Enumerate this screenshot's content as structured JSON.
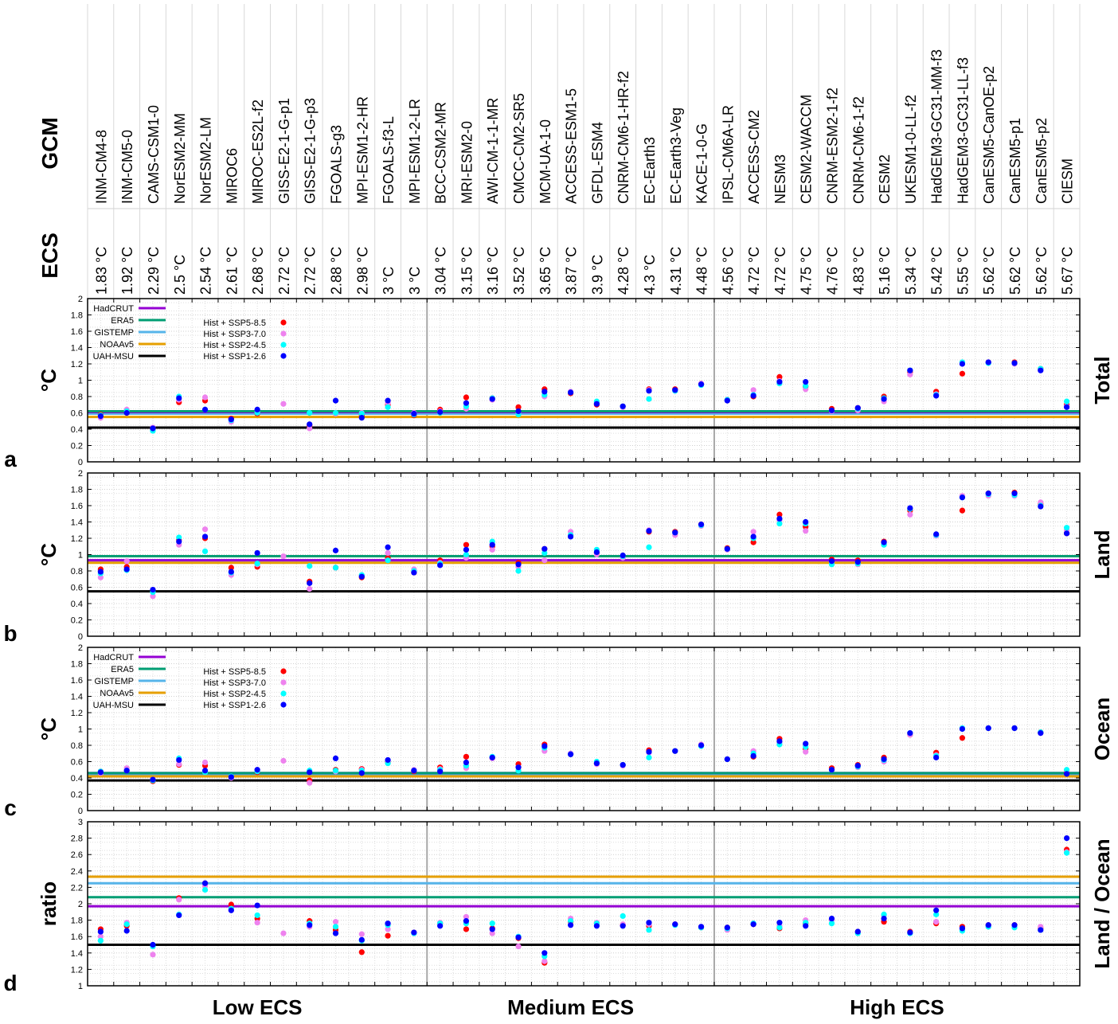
{
  "header": {
    "gcm_label": "GCM",
    "ecs_label": "ECS"
  },
  "models": [
    "INM-CM4-8",
    "INM-CM5-0",
    "CAMS-CSM1-0",
    "NorESM2-MM",
    "NorESM2-LM",
    "MIROC6",
    "MIROC-ES2L-f2",
    "GISS-E2-1-G-p1",
    "GISS-E2-1-G-p3",
    "FGOALS-g3",
    "MPI-ESM1-2-HR",
    "FGOALS-f3-L",
    "MPI-ESM1-2-LR",
    "BCC-CSM2-MR",
    "MRI-ESM2-0",
    "AWI-CM-1-1-MR",
    "CMCC-CM2-SR5",
    "MCM-UA-1-0",
    "ACCESS-ESM1-5",
    "GFDL-ESM4",
    "CNRM-CM6-1-HR-f2",
    "EC-Earth3",
    "EC-Earth3-Veg",
    "KACE-1-0-G",
    "IPSL-CM6A-LR",
    "ACCESS-CM2",
    "NESM3",
    "CESM2-WACCM",
    "CNRM-ESM2-1-f2",
    "CNRM-CM6-1-f2",
    "CESM2",
    "UKESM1-0-LL-f2",
    "HadGEM3-GC31-MM-f3",
    "HadGEM3-GC31-LL-f3",
    "CanESM5-CanOE-p2",
    "CanESM5-p1",
    "CanESM5-p2",
    "CIESM"
  ],
  "ecs": [
    "1.83 °C",
    "1.92 °C",
    "2.29 °C",
    "2.5 °C",
    "2.54 °C",
    "2.61 °C",
    "2.68 °C",
    "2.72 °C",
    "2.72 °C",
    "2.88 °C",
    "2.98 °C",
    "3 °C",
    "3 °C",
    "3.04 °C",
    "3.15 °C",
    "3.16 °C",
    "3.52 °C",
    "3.65 °C",
    "3.87 °C",
    "3.9 °C",
    "4.28 °C",
    "4.3 °C",
    "4.31 °C",
    "4.48 °C",
    "4.56 °C",
    "4.72 °C",
    "4.72 °C",
    "4.75 °C",
    "4.76 °C",
    "4.83 °C",
    "5.16 °C",
    "5.34 °C",
    "5.42 °C",
    "5.55 °C",
    "5.62 °C",
    "5.62 °C",
    "5.62 °C",
    "5.67 °C"
  ],
  "groups": [
    {
      "label": "Low ECS",
      "first": 0,
      "last": 12
    },
    {
      "label": "Medium ECS",
      "first": 13,
      "last": 23
    },
    {
      "label": "High ECS",
      "first": 24,
      "last": 37
    }
  ],
  "legend": {
    "observations": [
      {
        "label": "HadCRUT",
        "color": "#9400d3"
      },
      {
        "label": "ERA5",
        "color": "#009e73"
      },
      {
        "label": "GISTEMP",
        "color": "#56b4e9"
      },
      {
        "label": "NOAAv5",
        "color": "#e69f00"
      },
      {
        "label": "UAH-MSU",
        "color": "#000000"
      }
    ],
    "scenarios": [
      {
        "label": "Hist + SSP5-8.5",
        "color": "#ff0000"
      },
      {
        "label": "Hist + SSP3-7.0",
        "color": "#ee82ee"
      },
      {
        "label": "Hist + SSP2-4.5",
        "color": "#00ffff"
      },
      {
        "label": "Hist + SSP1-2.6",
        "color": "#0000ff"
      }
    ]
  },
  "chart_data": [
    {
      "type": "scatter",
      "panel_letter": "a",
      "ylabel": "°C",
      "right_label": "Total",
      "ylim": [
        0,
        2
      ],
      "yticks": [
        "0",
        "0.2",
        "0.4",
        "0.6",
        "0.8",
        "1",
        "1.2",
        "1.4",
        "1.6",
        "1.8",
        "2"
      ],
      "show_legend": true,
      "observations": [
        {
          "name": "HadCRUT",
          "value": 0.61
        },
        {
          "name": "ERA5",
          "value": 0.62
        },
        {
          "name": "GISTEMP",
          "value": 0.59
        },
        {
          "name": "NOAAv5",
          "value": 0.55
        },
        {
          "name": "UAH-MSU",
          "value": 0.42
        }
      ],
      "series": [
        {
          "name": "Hist + SSP5-8.5",
          "values": [
            0.58,
            0.6,
            0.41,
            0.73,
            0.75,
            0.53,
            0.59,
            null,
            0.45,
            0.6,
            0.57,
            0.7,
            0.57,
            0.64,
            0.79,
            0.78,
            0.67,
            0.89,
            0.84,
            0.7,
            0.68,
            0.89,
            0.89,
            0.95,
            0.76,
            0.8,
            1.04,
            0.92,
            0.65,
            0.66,
            0.8,
            1.1,
            0.86,
            1.08,
            1.22,
            1.22,
            1.14,
            0.7
          ]
        },
        {
          "name": "Hist + SSP3-7.0",
          "values": [
            0.54,
            0.64,
            0.42,
            0.76,
            0.79,
            0.49,
            0.61,
            0.71,
            0.41,
            0.59,
            0.6,
            0.72,
            0.6,
            0.62,
            0.65,
            0.76,
            0.6,
            0.8,
            0.86,
            0.72,
            0.67,
            0.88,
            0.87,
            0.96,
            0.75,
            0.88,
            0.99,
            0.89,
            0.62,
            0.63,
            0.74,
            1.07,
            0.83,
            1.22,
            1.22,
            1.2,
            1.12,
            0.68
          ]
        },
        {
          "name": "Hist + SSP2-4.5",
          "values": [
            0.57,
            0.62,
            0.38,
            0.8,
            0.64,
            0.51,
            0.6,
            null,
            0.6,
            0.6,
            0.59,
            0.67,
            0.58,
            0.6,
            0.68,
            0.78,
            0.58,
            0.82,
            0.85,
            0.74,
            0.68,
            0.77,
            0.87,
            0.94,
            0.76,
            0.82,
            0.96,
            0.93,
            0.63,
            0.65,
            0.78,
            1.12,
            0.82,
            1.22,
            1.21,
            1.21,
            1.14,
            0.74
          ]
        },
        {
          "name": "Hist + SSP1-2.6",
          "values": [
            0.56,
            0.6,
            0.41,
            0.78,
            0.64,
            0.52,
            0.64,
            null,
            0.46,
            0.75,
            0.54,
            0.75,
            0.59,
            0.61,
            0.72,
            0.77,
            0.62,
            0.86,
            0.85,
            0.71,
            0.68,
            0.87,
            0.88,
            0.95,
            0.75,
            0.81,
            0.98,
            0.98,
            0.63,
            0.66,
            0.77,
            1.12,
            0.81,
            1.2,
            1.22,
            1.21,
            1.12,
            0.67
          ]
        }
      ]
    },
    {
      "type": "scatter",
      "panel_letter": "b",
      "ylabel": "°C",
      "right_label": "Land",
      "ylim": [
        0,
        2
      ],
      "yticks": [
        "0",
        "0.2",
        "0.4",
        "0.6",
        "0.8",
        "1",
        "1.2",
        "1.4",
        "1.6",
        "1.8",
        "2"
      ],
      "show_legend": false,
      "observations": [
        {
          "name": "HadCRUT",
          "value": 0.93
        },
        {
          "name": "ERA5",
          "value": 0.98
        },
        {
          "name": "GISTEMP",
          "value": 0.93
        },
        {
          "name": "NOAAv5",
          "value": 0.9
        },
        {
          "name": "UAH-MSU",
          "value": 0.55
        }
      ],
      "series": [
        {
          "name": "Hist + SSP5-8.5",
          "values": [
            0.82,
            0.85,
            0.55,
            1.18,
            1.2,
            0.84,
            0.85,
            null,
            0.67,
            0.84,
            0.72,
            0.96,
            0.78,
            0.93,
            1.12,
            1.1,
            0.9,
            1.07,
            1.24,
            1.02,
            0.98,
            1.28,
            1.28,
            1.37,
            1.08,
            1.15,
            1.49,
            1.34,
            0.94,
            0.93,
            1.16,
            1.54,
            1.24,
            1.54,
            1.75,
            1.76,
            1.62,
            1.26
          ]
        },
        {
          "name": "Hist + SSP3-7.0",
          "values": [
            0.72,
            0.92,
            0.49,
            1.12,
            1.31,
            0.75,
            0.88,
            0.98,
            0.58,
            0.84,
            0.74,
            1.02,
            0.82,
            0.9,
            0.96,
            1.06,
            0.85,
            0.93,
            1.28,
            1.0,
            0.96,
            1.3,
            1.24,
            1.35,
            1.06,
            1.28,
            1.42,
            1.29,
            0.9,
            0.88,
            1.12,
            1.49,
            1.23,
            1.72,
            1.72,
            1.72,
            1.64,
            1.3
          ]
        },
        {
          "name": "Hist + SSP2-4.5",
          "values": [
            0.77,
            0.81,
            0.54,
            1.21,
            1.04,
            0.78,
            0.89,
            null,
            0.86,
            0.84,
            0.75,
            0.93,
            0.8,
            0.89,
            1.0,
            1.16,
            0.8,
            1.02,
            1.24,
            1.06,
            0.98,
            1.09,
            1.27,
            1.36,
            1.07,
            1.2,
            1.38,
            1.38,
            0.88,
            0.89,
            1.12,
            1.56,
            1.24,
            1.7,
            1.74,
            1.73,
            1.6,
            1.33
          ]
        },
        {
          "name": "Hist + SSP1-2.6",
          "values": [
            0.79,
            0.82,
            0.57,
            1.16,
            1.22,
            0.79,
            1.02,
            null,
            0.65,
            1.05,
            0.73,
            1.09,
            0.78,
            0.87,
            1.06,
            1.12,
            0.88,
            1.07,
            1.22,
            1.03,
            0.99,
            1.29,
            1.27,
            1.37,
            1.07,
            1.22,
            1.44,
            1.4,
            0.92,
            0.91,
            1.15,
            1.57,
            1.25,
            1.7,
            1.75,
            1.75,
            1.59,
            1.26
          ]
        }
      ]
    },
    {
      "type": "scatter",
      "panel_letter": "c",
      "ylabel": "°C",
      "right_label": "Ocean",
      "ylim": [
        0,
        2
      ],
      "yticks": [
        "0",
        "0.2",
        "0.4",
        "0.6",
        "0.8",
        "1",
        "1.2",
        "1.4",
        "1.6",
        "1.8",
        "2"
      ],
      "show_legend": true,
      "observations": [
        {
          "name": "HadCRUT",
          "value": 0.46
        },
        {
          "name": "ERA5",
          "value": 0.46
        },
        {
          "name": "GISTEMP",
          "value": 0.44
        },
        {
          "name": "NOAAv5",
          "value": 0.42
        },
        {
          "name": "UAH-MSU",
          "value": 0.37
        }
      ],
      "series": [
        {
          "name": "Hist + SSP5-8.5",
          "values": [
            0.48,
            0.49,
            0.36,
            0.56,
            0.55,
            0.42,
            0.47,
            null,
            0.37,
            0.5,
            0.51,
            0.59,
            0.48,
            0.53,
            0.66,
            0.65,
            0.57,
            0.81,
            0.69,
            0.58,
            0.56,
            0.74,
            0.73,
            0.8,
            0.63,
            0.66,
            0.88,
            0.76,
            0.52,
            0.56,
            0.65,
            0.93,
            0.71,
            0.89,
            1.01,
            1.01,
            0.96,
            0.47
          ]
        },
        {
          "name": "Hist + SSP3-7.0",
          "values": [
            0.46,
            0.52,
            0.38,
            0.57,
            0.59,
            0.4,
            0.5,
            0.61,
            0.34,
            0.48,
            0.5,
            0.61,
            0.5,
            0.51,
            0.52,
            0.64,
            0.53,
            0.73,
            0.7,
            0.57,
            0.55,
            0.71,
            0.73,
            0.81,
            0.63,
            0.73,
            0.83,
            0.72,
            0.5,
            0.53,
            0.6,
            0.93,
            0.68,
            1.01,
            1.01,
            1.01,
            0.95,
            0.49
          ]
        },
        {
          "name": "Hist + SSP2-4.5",
          "values": [
            0.48,
            0.49,
            0.37,
            0.64,
            0.47,
            0.42,
            0.48,
            null,
            0.49,
            0.49,
            0.49,
            0.58,
            0.49,
            0.5,
            0.55,
            0.66,
            0.49,
            0.77,
            0.69,
            0.6,
            0.56,
            0.65,
            0.73,
            0.79,
            0.63,
            0.7,
            0.81,
            0.78,
            0.5,
            0.54,
            0.62,
            0.95,
            0.67,
            1.01,
            1.01,
            1.01,
            0.96,
            0.5
          ]
        },
        {
          "name": "Hist + SSP1-2.6",
          "values": [
            0.47,
            0.49,
            0.38,
            0.62,
            0.49,
            0.41,
            0.5,
            null,
            0.47,
            0.64,
            0.46,
            0.62,
            0.49,
            0.48,
            0.59,
            0.65,
            0.53,
            0.79,
            0.69,
            0.58,
            0.56,
            0.72,
            0.73,
            0.8,
            0.63,
            0.67,
            0.85,
            0.82,
            0.5,
            0.55,
            0.63,
            0.95,
            0.65,
            1.0,
            1.01,
            1.01,
            0.95,
            0.45
          ]
        }
      ]
    },
    {
      "type": "scatter",
      "panel_letter": "d",
      "ylabel": "ratio",
      "right_label": "Land / Ocean",
      "ylim": [
        1,
        3
      ],
      "yticks": [
        "1",
        "1.2",
        "1.4",
        "1.6",
        "1.8",
        "2",
        "2.2",
        "2.4",
        "2.6",
        "2.8",
        "3"
      ],
      "show_legend": false,
      "observations": [
        {
          "name": "HadCRUT",
          "value": 1.97
        },
        {
          "name": "ERA5",
          "value": 2.08
        },
        {
          "name": "GISTEMP",
          "value": 2.25
        },
        {
          "name": "NOAAv5",
          "value": 2.33
        },
        {
          "name": "UAH-MSU",
          "value": 1.5
        }
      ],
      "series": [
        {
          "name": "Hist + SSP5-8.5",
          "values": [
            1.69,
            1.73,
            1.49,
            2.07,
            2.25,
            1.99,
            1.82,
            null,
            1.79,
            1.68,
            1.41,
            1.61,
            1.65,
            1.76,
            1.69,
            1.7,
            1.58,
            1.28,
            1.78,
            1.76,
            1.74,
            1.73,
            1.75,
            1.71,
            1.71,
            1.75,
            1.7,
            1.76,
            1.81,
            1.66,
            1.78,
            1.66,
            1.76,
            1.72,
            1.74,
            1.74,
            1.7,
            2.66
          ]
        },
        {
          "name": "Hist + SSP3-7.0",
          "values": [
            1.6,
            1.77,
            1.38,
            2.05,
            2.22,
            1.92,
            1.77,
            1.64,
            1.72,
            1.78,
            1.63,
            1.69,
            1.65,
            1.77,
            1.84,
            1.64,
            1.48,
            1.3,
            1.82,
            1.77,
            1.75,
            1.75,
            1.75,
            1.72,
            1.68,
            1.76,
            1.73,
            1.8,
            1.8,
            1.65,
            1.86,
            1.65,
            1.78,
            1.7,
            1.72,
            1.72,
            1.72,
            2.63
          ]
        },
        {
          "name": "Hist + SSP2-4.5",
          "values": [
            1.55,
            1.75,
            1.48,
            1.87,
            2.17,
            1.94,
            1.86,
            null,
            1.76,
            1.72,
            1.55,
            1.74,
            1.64,
            1.76,
            1.76,
            1.76,
            1.6,
            1.36,
            1.79,
            1.76,
            1.85,
            1.68,
            1.74,
            1.71,
            1.7,
            1.76,
            1.71,
            1.77,
            1.76,
            1.64,
            1.87,
            1.64,
            1.87,
            1.67,
            1.72,
            1.71,
            1.68,
            2.62
          ]
        },
        {
          "name": "Hist + SSP1-2.6",
          "values": [
            1.66,
            1.67,
            1.5,
            1.86,
            2.25,
            1.92,
            1.98,
            null,
            1.74,
            1.64,
            1.56,
            1.76,
            1.65,
            1.73,
            1.79,
            1.69,
            1.59,
            1.4,
            1.74,
            1.73,
            1.73,
            1.77,
            1.75,
            1.72,
            1.71,
            1.75,
            1.77,
            1.73,
            1.82,
            1.66,
            1.82,
            1.65,
            1.92,
            1.7,
            1.74,
            1.74,
            1.68,
            2.8
          ]
        }
      ]
    }
  ]
}
